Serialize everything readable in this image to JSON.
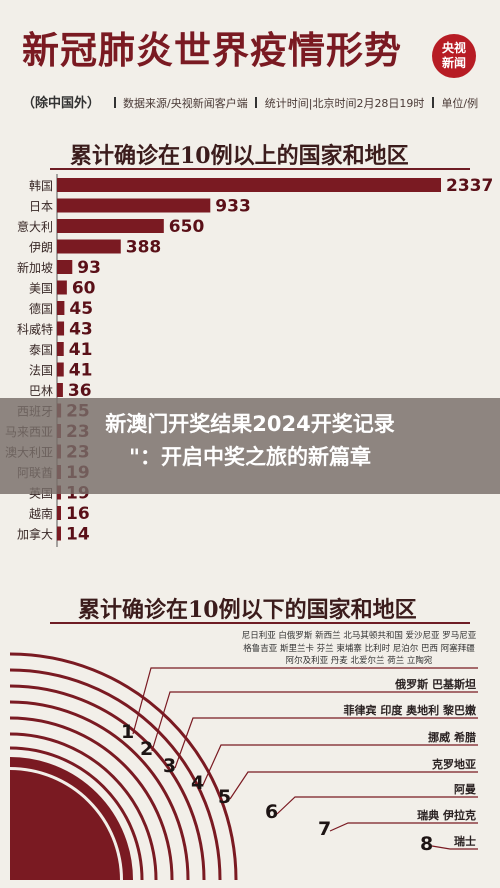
{
  "header": {
    "title": "新冠肺炎世界疫情形势",
    "logo_line1": "央视",
    "logo_line2": "新闻",
    "note": "（除中国外）",
    "source": "数据来源/央视新闻客户端",
    "stat_time": "统计时间|北京时间2月28日19时",
    "unit": "单位/例"
  },
  "section1": {
    "title": "累计确诊在10例以上的国家和地区"
  },
  "section2": {
    "title": "累计确诊在10例以下的国家和地区",
    "names_lines": [
      "尼日利亚 白俄罗斯 新西兰 北马其顿共和国 爱沙尼亚 罗马尼亚",
      "格鲁吉亚 斯里兰卡 芬兰 柬埔寨 比利时 尼泊尔 巴西 阿塞拜疆",
      "阿尔及利亚 丹麦 北爱尔兰 荷兰 立陶宛"
    ]
  },
  "chart_data": [
    {
      "type": "bar",
      "title": "累计确诊在10例以上的国家和地区",
      "categories": [
        "韩国",
        "日本",
        "意大利",
        "伊朗",
        "新加坡",
        "美国",
        "德国",
        "科威特",
        "泰国",
        "法国",
        "巴林",
        "西班牙",
        "马来西亚",
        "澳大利亚",
        "阿联酋",
        "英国",
        "越南",
        "加拿大"
      ],
      "values": [
        2337,
        933,
        650,
        388,
        93,
        60,
        45,
        43,
        41,
        41,
        36,
        25,
        23,
        23,
        19,
        19,
        16,
        14
      ],
      "value_labels": [
        "2337",
        "933",
        "650",
        "388",
        "93",
        "60",
        "45",
        "43",
        "41",
        "41",
        "36",
        "25",
        "23",
        "23",
        "19",
        "19",
        "16",
        "14"
      ],
      "color": "#7a1a22"
    },
    {
      "type": "table",
      "title": "累计确诊在10例以下的国家和地区",
      "rows": [
        {
          "count": "1",
          "countries": ""
        },
        {
          "count": "2",
          "countries": "俄罗斯 巴基斯坦"
        },
        {
          "count": "3",
          "countries": "菲律宾 印度 奥地利 黎巴嫩"
        },
        {
          "count": "4",
          "countries": "挪威 希腊"
        },
        {
          "count": "5",
          "countries": "克罗地亚"
        },
        {
          "count": "6",
          "countries": "阿曼"
        },
        {
          "count": "7",
          "countries": "瑞典 伊拉克"
        },
        {
          "count": "8",
          "countries": "瑞士"
        }
      ]
    }
  ],
  "overlay": {
    "line1": "新澳门开奖结果2024开奖记录",
    "line2": "\"：开启中奖之旅的新篇章"
  }
}
